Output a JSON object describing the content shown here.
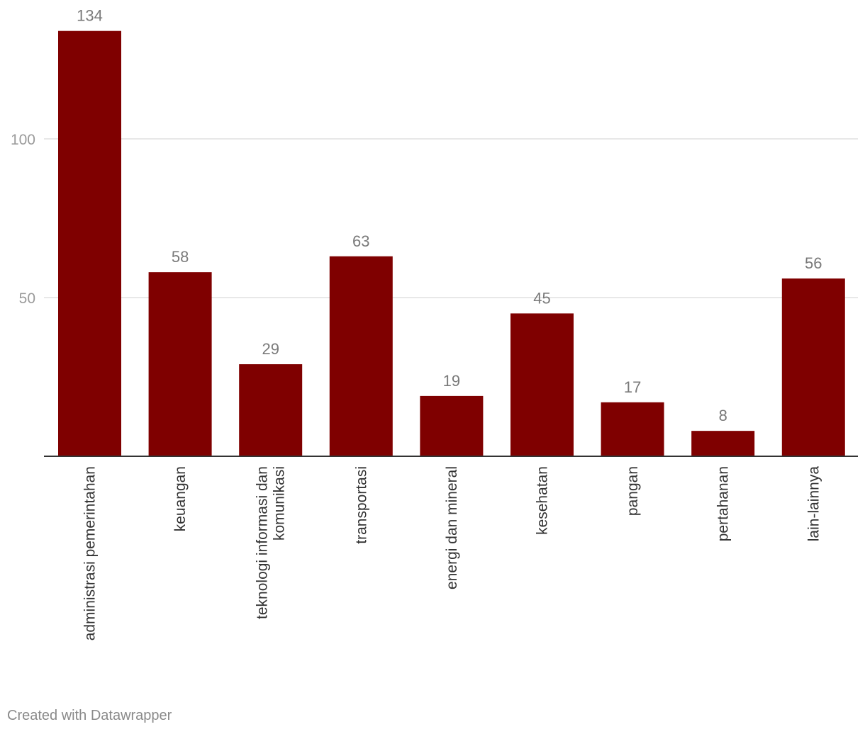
{
  "chart_data": {
    "type": "bar",
    "title": "",
    "xlabel": "",
    "ylabel": "",
    "categories": [
      [
        "administrasi pemerintahan"
      ],
      [
        "keuangan"
      ],
      [
        "teknologi informasi dan",
        "komunikasi"
      ],
      [
        "transportasi"
      ],
      [
        "energi dan mineral"
      ],
      [
        "kesehatan"
      ],
      [
        "pangan"
      ],
      [
        "pertahanan"
      ],
      [
        "lain-lainnya"
      ]
    ],
    "values": [
      134,
      58,
      29,
      63,
      19,
      45,
      17,
      8,
      56
    ],
    "ylim": [
      0,
      134
    ],
    "yticks": [
      50,
      100
    ],
    "grid": true,
    "bar_color": "#7f0000",
    "gridline_color": "#e0e0e0",
    "baseline_color": "#333333"
  },
  "footer": {
    "credit": "Created with Datawrapper"
  }
}
